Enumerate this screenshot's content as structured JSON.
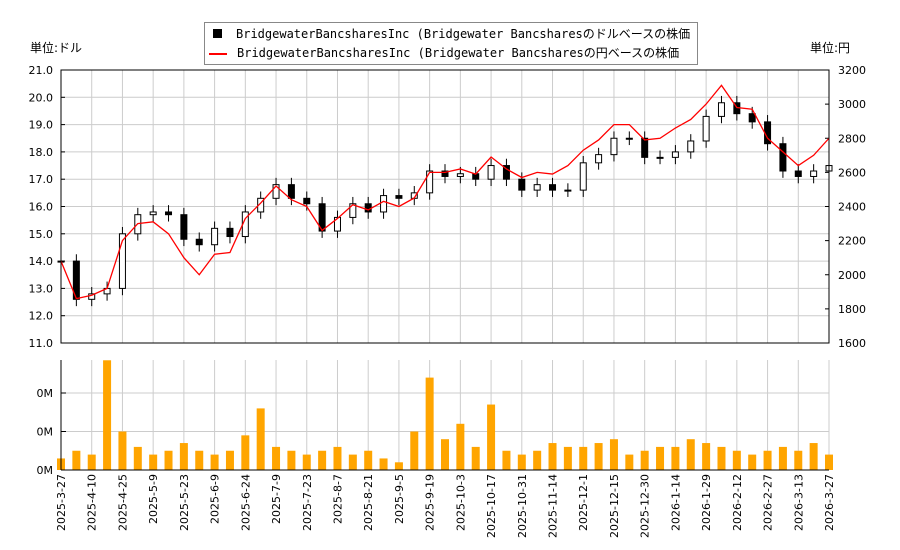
{
  "chart_data": {
    "type": "candlestick+line+bar",
    "units": {
      "left": "単位:ドル",
      "right": "単位:円"
    },
    "legend": {
      "placement": "top-center",
      "entries": [
        "BridgewaterBancsharesInc (Bridgewater Bancsharesのドルベースの株価",
        "BridgewaterBancsharesInc (Bridgewater Bancsharesの円ベースの株価"
      ]
    },
    "colors": {
      "usd": "#000000",
      "jpy": "#ff0000",
      "volume": "#ffa500",
      "grid": "#cccccc"
    },
    "left_axis": {
      "ylim": [
        11,
        21
      ],
      "ticks": [
        "11.0",
        "12.0",
        "13.0",
        "14.0",
        "15.0",
        "16.0",
        "17.0",
        "18.0",
        "19.0",
        "20.0",
        "21.0"
      ]
    },
    "right_axis": {
      "ylim": [
        1600,
        3200
      ],
      "ticks": [
        "1600",
        "1800",
        "2000",
        "2200",
        "2400",
        "2600",
        "2800",
        "3000",
        "3200"
      ]
    },
    "volume_axis": {
      "ticks": [
        "0M",
        "0M",
        "0M"
      ]
    },
    "x_ticks": [
      "2025-3-27",
      "2025-4-10",
      "2025-4-25",
      "2025-5-9",
      "2025-5-23",
      "2025-6-9",
      "2025-6-24",
      "2025-7-9",
      "2025-7-23",
      "2025-8-7",
      "2025-8-21",
      "2025-9-5",
      "2025-9-19",
      "2025-10-3",
      "2025-10-17",
      "2025-10-31",
      "2025-11-14",
      "2025-12-1",
      "2025-12-15",
      "2025-12-30",
      "2026-1-14",
      "2026-1-29",
      "2026-2-12",
      "2026-2-27",
      "2026-3-13",
      "2026-3-27"
    ],
    "usd_close": [
      14.0,
      12.6,
      12.8,
      13.0,
      15.0,
      15.7,
      15.8,
      15.7,
      14.8,
      14.6,
      15.2,
      14.9,
      15.8,
      16.3,
      16.8,
      16.3,
      16.1,
      15.1,
      15.6,
      16.1,
      15.8,
      16.4,
      16.3,
      16.5,
      17.3,
      17.1,
      17.2,
      17.0,
      17.5,
      17.0,
      16.6,
      16.8,
      16.6,
      16.6,
      17.6,
      17.9,
      18.5,
      18.5,
      17.8,
      17.8,
      18.0,
      18.4,
      19.3,
      19.8,
      19.4,
      19.1,
      18.3,
      17.3,
      17.1,
      17.3,
      17.5
    ],
    "jpy_close": [
      2080,
      1860,
      1880,
      1920,
      2200,
      2300,
      2310,
      2240,
      2100,
      2000,
      2120,
      2130,
      2330,
      2420,
      2520,
      2440,
      2400,
      2260,
      2330,
      2410,
      2380,
      2430,
      2400,
      2450,
      2600,
      2600,
      2620,
      2590,
      2690,
      2620,
      2570,
      2600,
      2590,
      2640,
      2730,
      2790,
      2880,
      2880,
      2790,
      2800,
      2860,
      2910,
      3000,
      3110,
      2980,
      2970,
      2800,
      2720,
      2640,
      2700,
      2800
    ],
    "volume_rel": [
      0.3,
      0.5,
      0.4,
      2.85,
      1.0,
      0.6,
      0.4,
      0.5,
      0.7,
      0.5,
      0.4,
      0.5,
      0.9,
      1.6,
      0.6,
      0.5,
      0.4,
      0.5,
      0.6,
      0.4,
      0.5,
      0.3,
      0.2,
      1.0,
      2.4,
      0.8,
      1.2,
      0.6,
      1.7,
      0.5,
      0.4,
      0.5,
      0.7,
      0.6,
      0.6,
      0.7,
      0.8,
      0.4,
      0.5,
      0.6,
      0.6,
      0.8,
      0.7,
      0.6,
      0.5,
      0.4,
      0.5,
      0.6,
      0.5,
      0.7,
      0.4
    ]
  }
}
